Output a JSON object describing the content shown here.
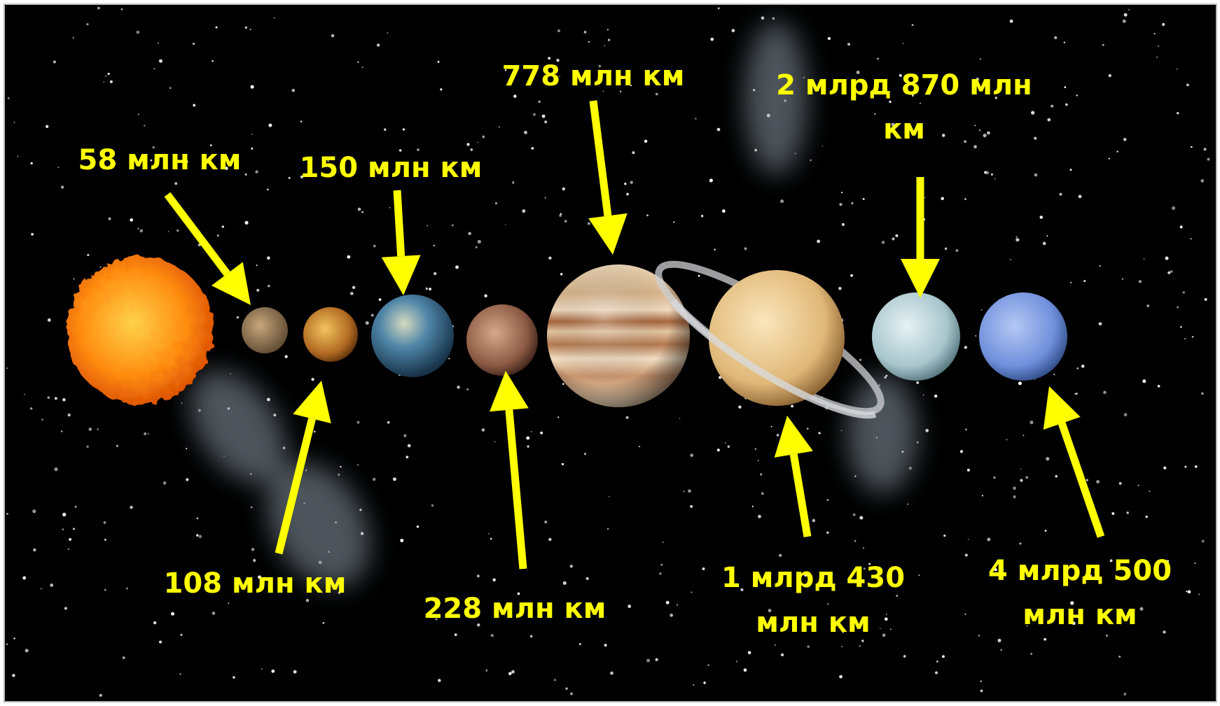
{
  "labels": [
    [
      "58 млн км"
    ],
    [
      "108 млн км"
    ],
    [
      "150 млн км"
    ],
    [
      "228 млн км"
    ],
    [
      "778 млн км"
    ],
    [
      "1 млрд 430",
      "млн км"
    ],
    [
      "2 млрд 870 млн",
      "км"
    ],
    [
      "4 млрд 500",
      "млн км"
    ]
  ]
}
